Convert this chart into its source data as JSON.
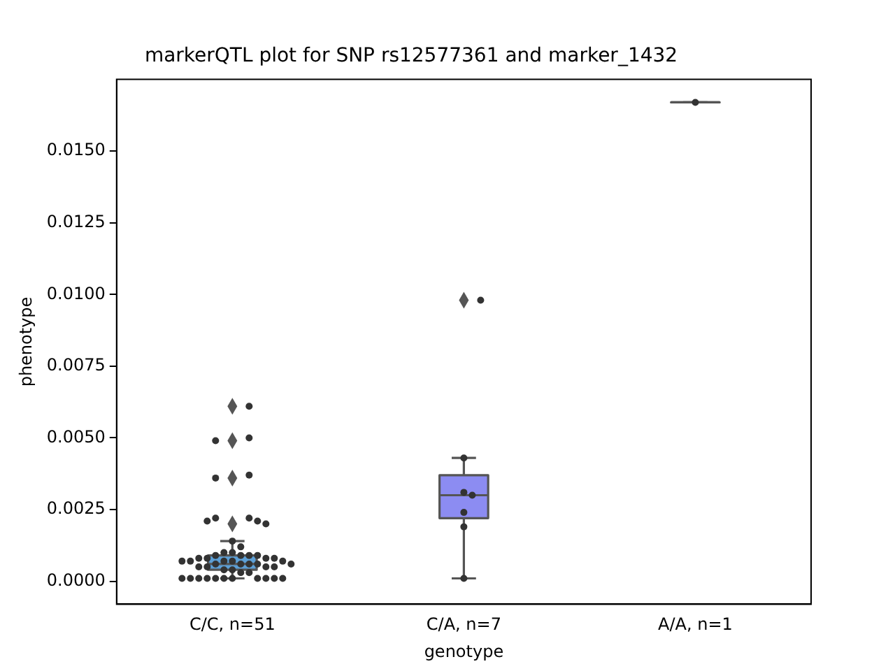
{
  "chart_data": {
    "type": "box",
    "title": "markerQTL plot for SNP rs12577361 and marker_1432",
    "xlabel": "genotype",
    "ylabel": "phenotype",
    "categories": [
      "C/C, n=51",
      "C/A, n=7",
      "A/A, n=1"
    ],
    "colors": [
      "#5c9fd6",
      "#8c8cf2",
      null
    ],
    "boxes": [
      {
        "low": 0.0001,
        "q1": 0.0004,
        "median": 0.0006,
        "q3": 0.0009,
        "high": 0.0014,
        "outliers": [
          0.0061,
          0.0049,
          0.0036,
          0.002
        ]
      },
      {
        "low": 0.0001,
        "q1": 0.0022,
        "median": 0.003,
        "q3": 0.0037,
        "high": 0.0043,
        "outliers": [
          0.0098
        ]
      },
      {
        "low": 0.0167,
        "q1": 0.0167,
        "median": 0.0167,
        "q3": 0.0167,
        "high": 0.0167
      }
    ],
    "series": [
      {
        "type": "scatter",
        "color": "#333333",
        "marker": "circle",
        "x": [
          "C/C, n=51",
          "C/C, n=51",
          "C/C, n=51",
          "C/C, n=51",
          "C/C, n=51",
          "C/C, n=51",
          "C/C, n=51",
          "C/C, n=51",
          "C/C, n=51",
          "C/C, n=51",
          "C/C, n=51",
          "C/C, n=51",
          "C/C, n=51",
          "C/C, n=51",
          "C/C, n=51",
          "C/C, n=51",
          "C/C, n=51",
          "C/C, n=51",
          "C/C, n=51",
          "C/C, n=51",
          "C/C, n=51",
          "C/C, n=51",
          "C/C, n=51",
          "C/C, n=51",
          "C/C, n=51",
          "C/C, n=51",
          "C/C, n=51",
          "C/C, n=51",
          "C/C, n=51",
          "C/C, n=51",
          "C/C, n=51",
          "C/C, n=51",
          "C/C, n=51",
          "C/C, n=51",
          "C/C, n=51",
          "C/C, n=51",
          "C/C, n=51",
          "C/C, n=51",
          "C/C, n=51",
          "C/C, n=51",
          "C/C, n=51",
          "C/C, n=51",
          "C/C, n=51",
          "C/C, n=51",
          "C/C, n=51",
          "C/C, n=51",
          "C/C, n=51",
          "C/C, n=51",
          "C/C, n=51",
          "C/C, n=51",
          "C/C, n=51",
          "C/A, n=7",
          "C/A, n=7",
          "C/A, n=7",
          "C/A, n=7",
          "C/A, n=7",
          "C/A, n=7",
          "C/A, n=7",
          "A/A, n=1"
        ],
        "values": [
          0.0061,
          0.005,
          0.0049,
          0.0037,
          0.0036,
          0.0022,
          0.0022,
          0.0021,
          0.0021,
          0.002,
          0.0014,
          0.0012,
          0.001,
          0.001,
          0.0009,
          0.0009,
          0.0009,
          0.0009,
          0.0008,
          0.0008,
          0.0008,
          0.0008,
          0.0007,
          0.0007,
          0.0007,
          0.0007,
          0.0007,
          0.0006,
          0.0006,
          0.0006,
          0.0006,
          0.0006,
          0.0005,
          0.0005,
          0.0005,
          0.0005,
          0.0004,
          0.0004,
          0.0003,
          0.0003,
          0.0001,
          0.0001,
          0.0001,
          0.0001,
          0.0001,
          0.0001,
          0.0001,
          0.0001,
          0.0001,
          0.0001,
          0.0001,
          0.0098,
          0.0043,
          0.0031,
          0.003,
          0.0024,
          0.0019,
          0.0001,
          0.0167
        ]
      }
    ],
    "ylim": [
      -0.0008,
      0.0175
    ],
    "yticks": [
      {
        "value": 0,
        "label": "0.0000"
      },
      {
        "value": 0.0025,
        "label": "0.0025"
      },
      {
        "value": 0.005,
        "label": "0.0050"
      },
      {
        "value": 0.0075,
        "label": "0.0075"
      },
      {
        "value": 0.01,
        "label": "0.0100"
      },
      {
        "value": 0.0125,
        "label": "0.0125"
      },
      {
        "value": 0.015,
        "label": "0.0150"
      }
    ],
    "grid": false,
    "legend": false
  }
}
